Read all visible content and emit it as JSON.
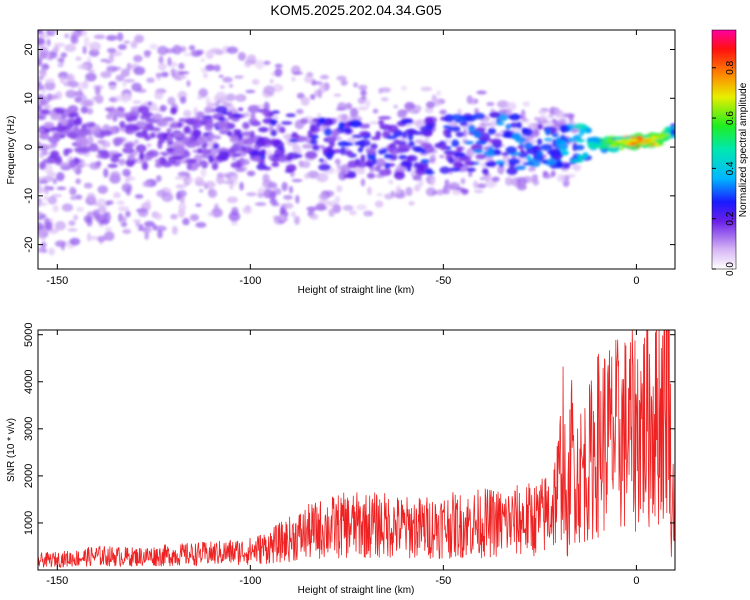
{
  "title": "KOM5.2025.202.04.34.G05",
  "colors": {
    "snr_line": "#ee2222",
    "spectrogram_base": "#9b6fe0",
    "axis": "#000000",
    "background": "#ffffff"
  },
  "chart_data": [
    {
      "type": "heatmap",
      "title": "",
      "xlabel": "Height of straight line (km)",
      "ylabel": "Frequency (Hz)",
      "xlim": [
        -155,
        10
      ],
      "ylim": [
        -25,
        24
      ],
      "xticks": [
        "-150",
        "-100",
        "-50",
        "0"
      ],
      "xtick_values": [
        -150,
        -100,
        -50,
        0
      ],
      "yticks": [
        "20",
        "10",
        "0",
        "-10",
        "-20"
      ],
      "ytick_values": [
        20,
        10,
        0,
        -10,
        -20
      ],
      "grid": false,
      "colorbar": {
        "label": "Normalized spectral amplitude",
        "range": [
          0.0,
          0.95
        ],
        "ticks": [
          "0.0",
          "0.2",
          "0.4",
          "0.6",
          "0.8"
        ],
        "tick_values": [
          0.0,
          0.2,
          0.4,
          0.6,
          0.8
        ],
        "colormap": "rainbow"
      },
      "ridge": {
        "description_x": [
          -155,
          -120,
          -100,
          -80,
          -60,
          -40,
          -20,
          -10,
          0,
          5,
          10
        ],
        "center_freq_hz": [
          2,
          2,
          2,
          0,
          0,
          1,
          0,
          0.5,
          1,
          1.5,
          3
        ],
        "peak_amplitude": [
          0.2,
          0.2,
          0.25,
          0.3,
          0.3,
          0.35,
          0.4,
          0.55,
          0.9,
          0.8,
          0.5
        ]
      }
    },
    {
      "type": "line",
      "title": "",
      "xlabel": "Height of straight line (km)",
      "ylabel": "SNR (10 * v/v)",
      "xlim": [
        -155,
        10
      ],
      "ylim": [
        0,
        5100
      ],
      "xticks": [
        "-150",
        "-100",
        "-50",
        "0"
      ],
      "xtick_values": [
        -150,
        -100,
        -50,
        0
      ],
      "yticks": [
        "1000",
        "2000",
        "3000",
        "4000",
        "5000"
      ],
      "ytick_values": [
        1000,
        2000,
        3000,
        4000,
        5000
      ],
      "grid": false,
      "series": [
        {
          "x": [
            -155,
            -145,
            -140,
            -130,
            -120,
            -110,
            -100,
            -95,
            -90,
            -85,
            -80,
            -75,
            -70,
            -65,
            -60,
            -55,
            -50,
            -45,
            -40,
            -35,
            -30,
            -25,
            -22,
            -20,
            -19,
            -18,
            -17,
            -15,
            -12,
            -10,
            -8,
            -5,
            -3,
            0,
            2,
            5,
            7,
            8,
            8.5,
            9,
            10
          ],
          "y": [
            200,
            250,
            300,
            280,
            320,
            350,
            400,
            500,
            650,
            800,
            900,
            950,
            950,
            950,
            900,
            900,
            950,
            950,
            1000,
            1000,
            1050,
            1100,
            1300,
            1800,
            2800,
            700,
            2500,
            2000,
            2300,
            2700,
            2800,
            2850,
            2900,
            3000,
            3100,
            3300,
            3500,
            4000,
            5000,
            1000,
            1900
          ]
        }
      ]
    }
  ]
}
